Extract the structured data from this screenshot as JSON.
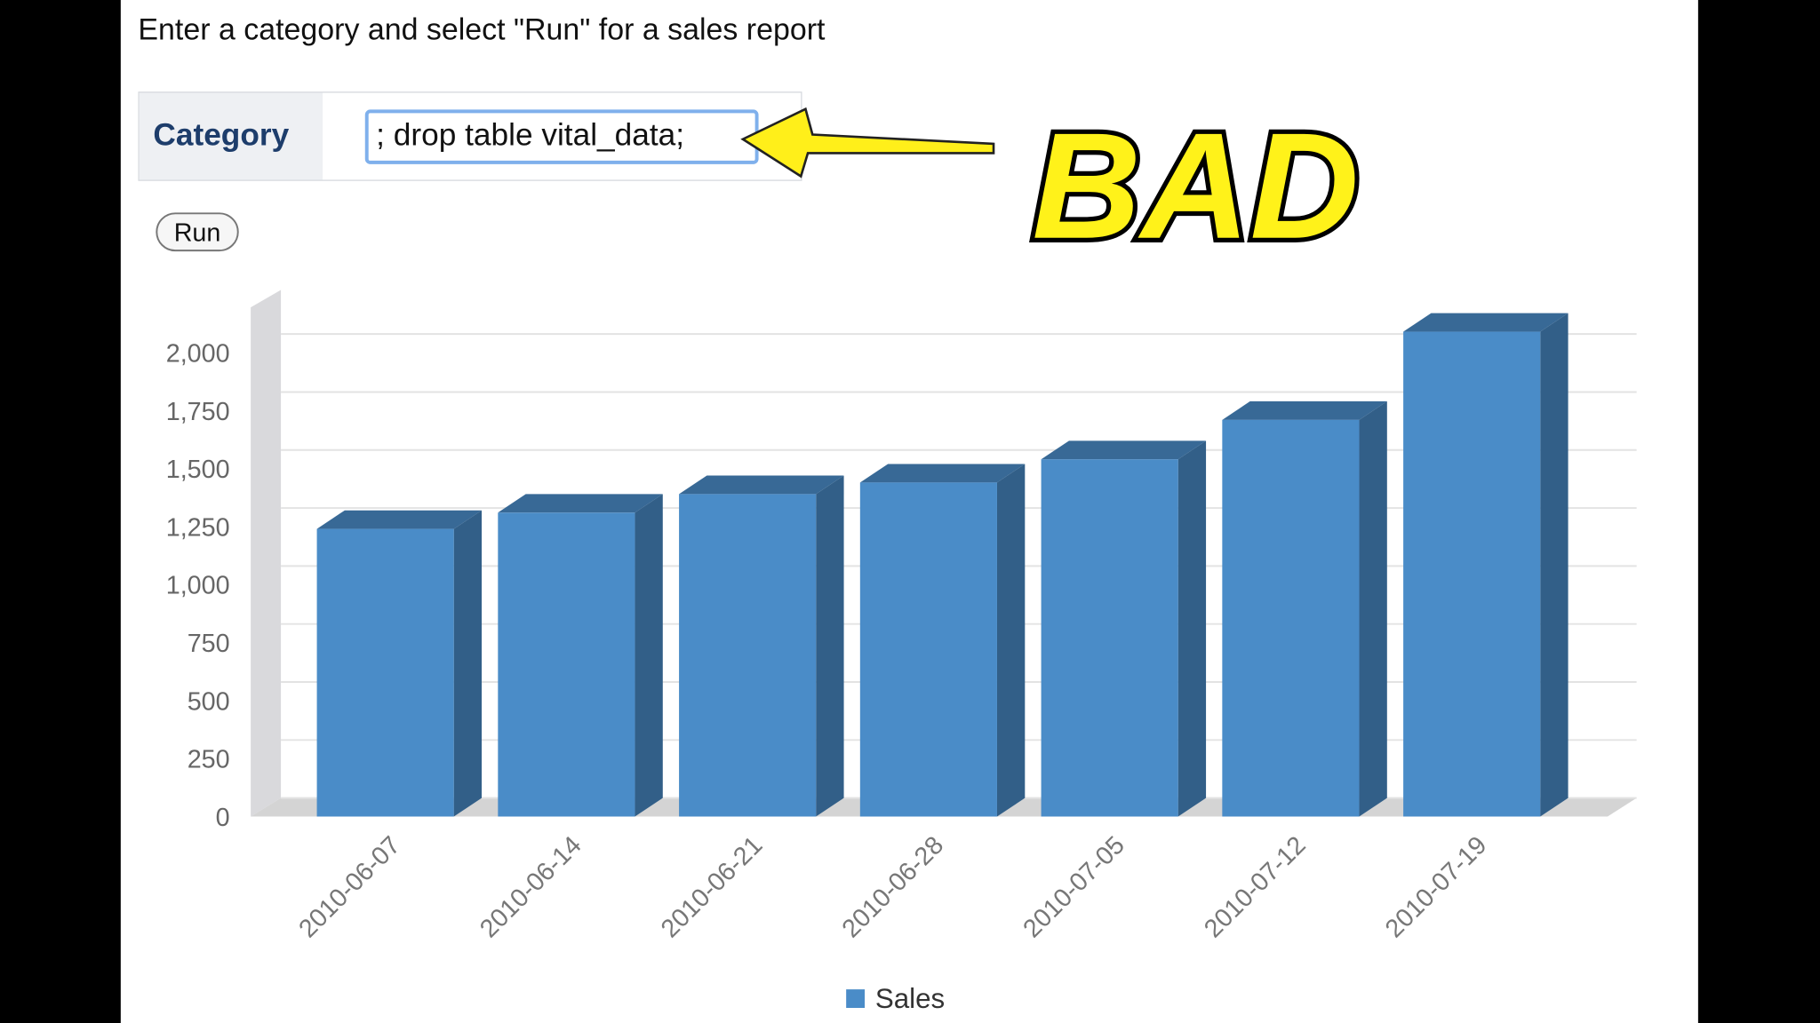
{
  "instructions": "Enter a category and select \"Run\" for a sales report",
  "form": {
    "label": "Category",
    "input_value": "; drop table vital_data;",
    "button": "Run"
  },
  "annotation": "BAD",
  "chart_data": {
    "type": "bar3d",
    "categories": [
      "2010-06-07",
      "2010-06-14",
      "2010-06-21",
      "2010-06-28",
      "2010-07-05",
      "2010-07-12",
      "2010-07-19"
    ],
    "series": [
      {
        "name": "Sales",
        "color": "#4a8cc8",
        "values": [
          1240,
          1310,
          1390,
          1440,
          1540,
          1710,
          2090
        ]
      }
    ],
    "ylim": [
      0,
      2200
    ],
    "yticks": [
      0,
      250,
      500,
      750,
      {
        "value": 1000,
        "label": "1,000"
      },
      {
        "value": 1250,
        "label": "1,250"
      },
      {
        "value": 1500,
        "label": "1,500"
      },
      {
        "value": 1750,
        "label": "1,750"
      },
      {
        "value": 2000,
        "label": "2,000"
      }
    ],
    "grid": true
  }
}
